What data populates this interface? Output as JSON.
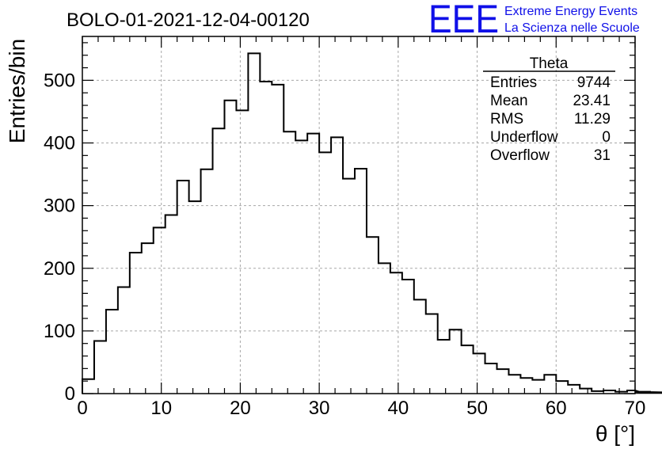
{
  "header": {
    "title": "BOLO-01-2021-12-04-00120",
    "logo_text": "EEE",
    "logo_line1": "Extreme Energy Events",
    "logo_line2": "La Scienza nelle Scuole"
  },
  "stats_box": {
    "name": "Theta",
    "rows": [
      {
        "label": "Entries",
        "value": "9744"
      },
      {
        "label": "Mean",
        "value": "23.41"
      },
      {
        "label": "RMS",
        "value": "11.29"
      },
      {
        "label": "Underflow",
        "value": "0"
      },
      {
        "label": "Overflow",
        "value": "31"
      }
    ]
  },
  "chart_data": {
    "type": "bar",
    "style": "step-histogram",
    "xlabel": "θ [°]",
    "ylabel": "Entries/bin",
    "xlim": [
      0,
      70
    ],
    "ylim": [
      0,
      570
    ],
    "grid": true,
    "bin_width": 1.5,
    "bin_edges_start": 0,
    "x_ticks": [
      0,
      10,
      20,
      30,
      40,
      50,
      60,
      70
    ],
    "y_ticks": [
      0,
      100,
      200,
      300,
      400,
      500
    ],
    "values": [
      23,
      84,
      134,
      170,
      225,
      240,
      265,
      285,
      340,
      307,
      358,
      423,
      468,
      452,
      543,
      498,
      493,
      418,
      404,
      415,
      385,
      409,
      343,
      359,
      250,
      208,
      193,
      182,
      150,
      127,
      86,
      102,
      77,
      64,
      48,
      39,
      30,
      25,
      22,
      30,
      20,
      14,
      8,
      4,
      5,
      3,
      5,
      3,
      3,
      2,
      1
    ],
    "line_color": "#000000"
  }
}
